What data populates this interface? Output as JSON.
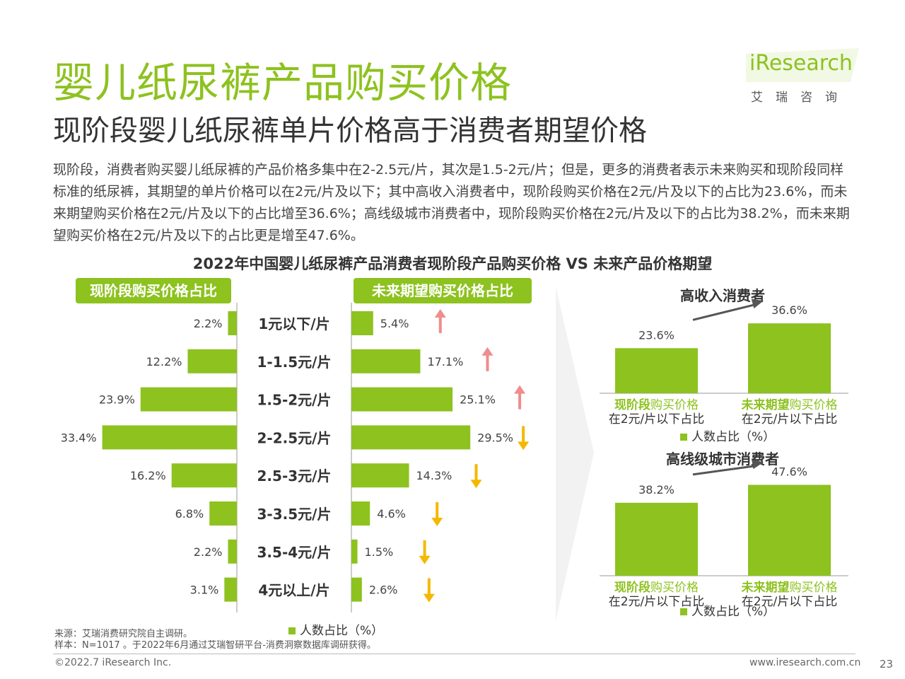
{
  "title": "婴儿纸尿裤产品购买价格",
  "subtitle": "现阶段婴儿纸尿裤单片价格高于消费者期望价格",
  "intro": "现阶段，消费者购买婴儿纸尿裤的产品价格多集中在2-2.5元/片，其次是1.5-2元/片；但是，更多的消费者表示未来购买和现阶段同样标准的纸尿裤，其期望的单片价格可以在2元/片及以下；其中高收入消费者中，现阶段购买价格在2元/片及以下的占比为23.6%，而未来期望购买价格在2元/片及以下的占比增至36.6%；高线级城市消费者中，现阶段购买价格在2元/片及以下的占比为38.2%，而未来期望购买价格在2元/片及以下的占比更是增至47.6%。",
  "logo": {
    "text": "iResearch",
    "cn": "艾瑞咨询"
  },
  "colors": {
    "accent": "#8dc21f",
    "up": "#f08c8c",
    "down": "#f5b800"
  },
  "chart_title": "2022年中国婴儿纸尿裤产品消费者现阶段产品购买价格 VS 未来产品价格期望",
  "chart_data": [
    {
      "type": "bar",
      "orientation": "horizontal-butterfly",
      "left_header": "现阶段购买价格占比",
      "right_header": "未来期望购买价格占比",
      "categories": [
        "1元以下/片",
        "1-1.5元/片",
        "1.5-2元/片",
        "2-2.5元/片",
        "2.5-3元/片",
        "3-3.5元/片",
        "3.5-4元/片",
        "4元以上/片"
      ],
      "series": [
        {
          "values": [
            2.2,
            12.2,
            23.9,
            33.4,
            16.2,
            6.8,
            2.2,
            3.1
          ]
        },
        {
          "values": [
            5.4,
            17.1,
            25.1,
            29.5,
            14.3,
            4.6,
            1.5,
            2.6
          ]
        }
      ],
      "value_labels_left": [
        "2.2%",
        "12.2%",
        "23.9%",
        "33.4%",
        "16.2%",
        "6.8%",
        "2.2%",
        "3.1%"
      ],
      "value_labels_right": [
        "5.4%",
        "17.1%",
        "25.1%",
        "29.5%",
        "14.3%",
        "4.6%",
        "1.5%",
        "2.6%"
      ],
      "trend": [
        "up",
        "up",
        "up",
        "down",
        "down",
        "down",
        "down",
        "down"
      ],
      "legend": "人数占比（%）"
    },
    {
      "type": "bar",
      "title": "高收入消费者",
      "categories": [
        "现阶段购买价格 在2元/片以下占比",
        "未来期望购买价格 在2元/片以下占比"
      ],
      "values": [
        23.6,
        36.6
      ],
      "value_labels": [
        "23.6%",
        "36.6%"
      ],
      "legend": "人数占比（%）"
    },
    {
      "type": "bar",
      "title": "高线级城市消费者",
      "categories": [
        "现阶段购买价格 在2元/片以下占比",
        "未来期望购买价格 在2元/片以下占比"
      ],
      "values": [
        38.2,
        47.6
      ],
      "value_labels": [
        "38.2%",
        "47.6%"
      ],
      "legend": "人数占比（%）"
    }
  ],
  "small_chart_xlabels": [
    {
      "hl": "现阶段",
      "rest": "购买价格",
      "line2": "在2元/片以下占比"
    },
    {
      "hl": "未来期望",
      "rest": "购买价格",
      "line2": "在2元/片以下占比"
    }
  ],
  "source": "来源：艾瑞消费研究院自主调研。",
  "sample": "样本：N=1017 。于2022年6月通过艾瑞智研平台-消费洞察数据库调研获得。",
  "copyright": "©2022.7 iResearch Inc.",
  "website": "www.iresearch.com.cn",
  "page_number": "23"
}
